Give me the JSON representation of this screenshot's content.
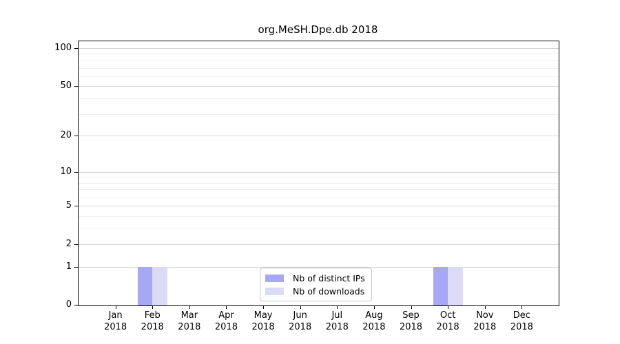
{
  "chart_data": {
    "type": "bar",
    "title": "org.MeSH.Dpe.db 2018",
    "x": [
      {
        "month": "Jan",
        "year": "2018"
      },
      {
        "month": "Feb",
        "year": "2018"
      },
      {
        "month": "Mar",
        "year": "2018"
      },
      {
        "month": "Apr",
        "year": "2018"
      },
      {
        "month": "May",
        "year": "2018"
      },
      {
        "month": "Jun",
        "year": "2018"
      },
      {
        "month": "Jul",
        "year": "2018"
      },
      {
        "month": "Aug",
        "year": "2018"
      },
      {
        "month": "Sep",
        "year": "2018"
      },
      {
        "month": "Oct",
        "year": "2018"
      },
      {
        "month": "Nov",
        "year": "2018"
      },
      {
        "month": "Dec",
        "year": "2018"
      }
    ],
    "series": [
      {
        "name": "Nb of distinct IPs",
        "color": "#a7a7f5",
        "values": [
          0,
          1,
          0,
          0,
          0,
          0,
          0,
          0,
          0,
          1,
          0,
          0
        ]
      },
      {
        "name": "Nb of downloads",
        "color": "#dbdbf8",
        "values": [
          0,
          1,
          0,
          0,
          0,
          0,
          0,
          0,
          0,
          1,
          0,
          0
        ]
      }
    ],
    "y_axis": {
      "scale": "log1p",
      "min": 0,
      "max": 100,
      "ticks": [
        0,
        1,
        2,
        5,
        10,
        20,
        50,
        100
      ],
      "minor_gridlines": [
        3,
        4,
        6,
        7,
        8,
        9,
        30,
        40,
        60,
        70,
        80,
        90
      ]
    },
    "grid": true,
    "legend_position": "inside-bottom-center",
    "colors": {
      "grid_major": "#d4d4d4",
      "grid_minor": "#efefef",
      "axis": "#000000",
      "legend_border": "#c4c4c4"
    }
  }
}
